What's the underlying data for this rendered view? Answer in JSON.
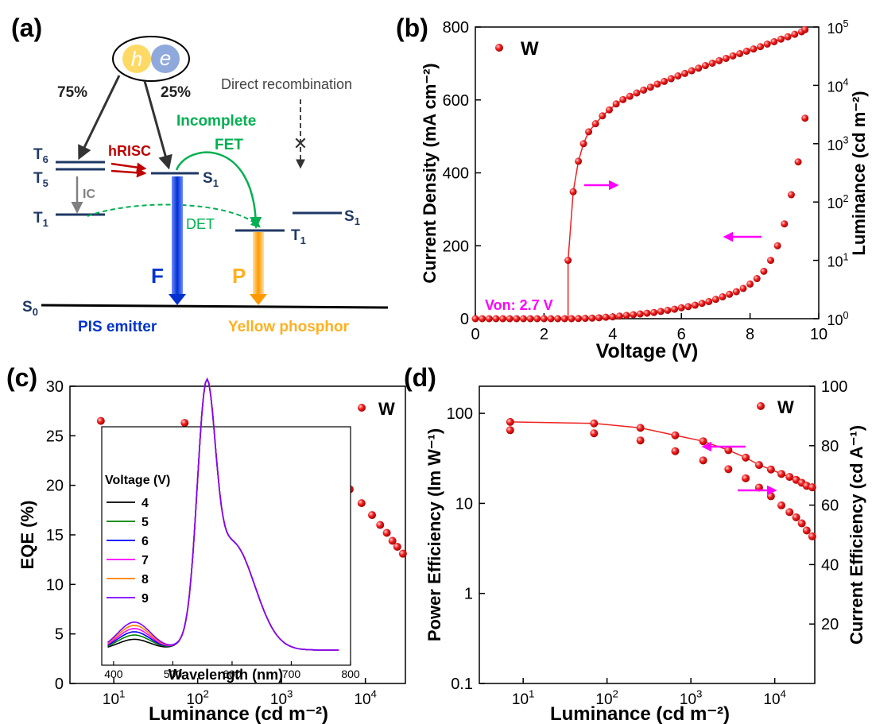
{
  "panel_labels": [
    "(a)",
    "(b)",
    "(c)",
    "(d)"
  ],
  "diagram": {
    "carrier_h": "h",
    "carrier_e": "e",
    "pct_left": "75%",
    "pct_right": "25%",
    "direct_recombination": "Direct recombination",
    "T6": "T",
    "T6_sub": "6",
    "T5": "T",
    "T5_sub": "5",
    "T1_left": "T",
    "T1_left_sub": "1",
    "S1_left": "S",
    "S1_left_sub": "1",
    "S1_right": "S",
    "S1_right_sub": "1",
    "T1_right": "T",
    "T1_right_sub": "1",
    "S0": "S",
    "S0_sub": "0",
    "hRISC": "hRISC",
    "IC": "IC",
    "incomplete": "Incomplete",
    "FET": "FET",
    "DET": "DET",
    "F": "F",
    "P": "P",
    "pis_emitter": "PIS emitter",
    "yellow_phosphor": "Yellow phosphor",
    "colors": {
      "navy": "#1f3864",
      "red": "#c00000",
      "green": "#00b050",
      "blue": "#0033cc",
      "orange": "#ffb020",
      "gray": "#808080"
    }
  },
  "chart_data": [
    {
      "panel": "(b)",
      "type": "scatter",
      "xlabel": "Voltage (V)",
      "ylabel_left": "Current Density (mA cm⁻²)",
      "ylabel_right": "Luminance (cd m⁻²)",
      "xlim": [
        0,
        10
      ],
      "ylim_left": [
        0,
        800
      ],
      "ylim_right_log": [
        1,
        100000
      ],
      "xticks": [
        "0",
        "2",
        "4",
        "6",
        "8",
        "10"
      ],
      "yticks_left": [
        "0",
        "200",
        "400",
        "600",
        "800"
      ],
      "legend": "W",
      "annotation": "Von: 2.7 V",
      "current_density": {
        "x": [
          0,
          0.2,
          0.4,
          0.6,
          0.8,
          1.0,
          1.2,
          1.4,
          1.6,
          1.8,
          2.0,
          2.2,
          2.4,
          2.6,
          2.8,
          3.0,
          3.2,
          3.4,
          3.6,
          3.8,
          4.0,
          4.2,
          4.4,
          4.6,
          4.8,
          5.0,
          5.2,
          5.4,
          5.6,
          5.8,
          6.0,
          6.2,
          6.4,
          6.6,
          6.8,
          7.0,
          7.2,
          7.4,
          7.6,
          7.8,
          8.0,
          8.2,
          8.4,
          8.6,
          8.8,
          9.0,
          9.2,
          9.4,
          9.6
        ],
        "y": [
          0,
          0,
          0,
          0,
          0,
          0,
          0,
          0,
          0,
          0,
          0,
          0,
          0,
          0,
          0,
          0.5,
          1,
          1.5,
          2.5,
          4,
          5,
          7,
          9,
          11,
          13,
          15,
          17,
          20,
          23,
          26,
          30,
          33,
          37,
          42,
          47,
          53,
          60,
          67,
          74,
          83,
          95,
          110,
          130,
          160,
          200,
          260,
          340,
          430,
          550
        ]
      },
      "luminance": {
        "x": [
          2.7,
          2.85,
          3.0,
          3.15,
          3.3,
          3.5,
          3.7,
          3.9,
          4.1,
          4.3,
          4.5,
          4.7,
          4.9,
          5.1,
          5.3,
          5.5,
          5.7,
          5.9,
          6.1,
          6.3,
          6.5,
          6.7,
          6.9,
          7.1,
          7.3,
          7.5,
          7.7,
          7.9,
          8.1,
          8.3,
          8.5,
          8.7,
          8.9,
          9.1,
          9.3,
          9.5,
          9.6
        ],
        "y": [
          10,
          150,
          500,
          1000,
          1600,
          2200,
          3000,
          3800,
          4800,
          5700,
          6500,
          7400,
          8300,
          9300,
          10500,
          11700,
          13000,
          14500,
          16000,
          17800,
          19700,
          21800,
          24000,
          26500,
          29000,
          32000,
          35000,
          38500,
          42000,
          46000,
          51000,
          56000,
          62000,
          68000,
          75000,
          83000,
          90000
        ]
      }
    },
    {
      "panel": "(c)",
      "type": "scatter",
      "xlabel": "Luminance (cd m⁻²)",
      "ylabel": "EQE (%)",
      "xscale": "log",
      "xlim": [
        3,
        30000
      ],
      "ylim": [
        0,
        30
      ],
      "yticks": [
        "0",
        "5",
        "10",
        "15",
        "20",
        "25",
        "30"
      ],
      "legend": "W",
      "eqe": {
        "x": [
          7,
          70,
          250,
          650,
          1400,
          2800,
          4500,
          6500,
          9000,
          12000,
          15000,
          18000,
          21000,
          24000,
          28000
        ],
        "y": [
          26.5,
          26.3,
          25.5,
          24.6,
          23.5,
          22.2,
          20.9,
          19.6,
          18.2,
          17.0,
          16.0,
          15.2,
          14.4,
          13.8,
          13.1
        ]
      },
      "inset": {
        "type": "line",
        "xlabel": "Wavelength (nm)",
        "xlim": [
          380,
          800
        ],
        "xticks": [
          "400",
          "500",
          "600",
          "700",
          "800"
        ],
        "legend_title": "Voltage (V)",
        "series": [
          {
            "name": "4",
            "color": "#000000",
            "blue_peak": 0.05
          },
          {
            "name": "5",
            "color": "#008000",
            "blue_peak": 0.07
          },
          {
            "name": "6",
            "color": "#0000ff",
            "blue_peak": 0.085
          },
          {
            "name": "7",
            "color": "#ff00ff",
            "blue_peak": 0.1
          },
          {
            "name": "8",
            "color": "#ff8000",
            "blue_peak": 0.115
          },
          {
            "name": "9",
            "color": "#8000ff",
            "blue_peak": 0.13
          }
        ]
      }
    },
    {
      "panel": "(d)",
      "type": "scatter",
      "xlabel": "Luminance (cd m⁻²)",
      "ylabel_left": "Power Efficiency (lm W⁻¹)",
      "ylabel_right": "Current Efficiency (cd A⁻¹)",
      "xscale": "log",
      "xlim": [
        3,
        30000
      ],
      "ylim_left_log": [
        0.1,
        200
      ],
      "ylim_right": [
        0,
        100
      ],
      "yticks_left": [
        "0.1",
        "1",
        "10",
        "100"
      ],
      "yticks_right": [
        "20",
        "40",
        "60",
        "80",
        "100"
      ],
      "legend": "W",
      "current_efficiency": {
        "x": [
          7,
          70,
          250,
          650,
          1400,
          2800,
          4500,
          6500,
          9000,
          12000,
          15000,
          18000,
          21000,
          24000,
          28000
        ],
        "y": [
          88,
          87.5,
          86,
          83.5,
          81.5,
          78.5,
          76,
          73.5,
          72,
          70.5,
          69.5,
          68.5,
          67.5,
          66.5,
          66
        ]
      },
      "power_efficiency": {
        "x": [
          7,
          70,
          250,
          650,
          1400,
          2800,
          4500,
          6500,
          9000,
          12000,
          15000,
          18000,
          21000,
          24000,
          28000
        ],
        "y": [
          65,
          60,
          50,
          38,
          30,
          24,
          19,
          15,
          12,
          9.5,
          8,
          7,
          6,
          5,
          4.3
        ]
      }
    }
  ],
  "colors": {
    "marker": "#ee2222",
    "arrow": "#ff00ff"
  }
}
